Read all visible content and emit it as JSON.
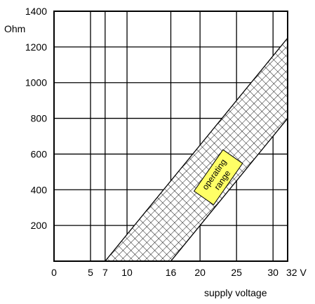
{
  "chart_data": {
    "type": "area",
    "title": "",
    "xlabel": "supply voltage",
    "ylabel": "Ohm",
    "x_unit": "V",
    "xlim": [
      0,
      32
    ],
    "ylim": [
      0,
      1400
    ],
    "x_ticks": [
      0,
      5,
      7,
      10,
      16,
      20,
      25,
      30,
      32
    ],
    "x_tick_labels": [
      "0",
      "5",
      "7",
      "10",
      "16",
      "20",
      "25",
      "30",
      "32 V"
    ],
    "y_ticks": [
      200,
      400,
      600,
      800,
      1000,
      1200,
      1400
    ],
    "y_tick_labels": [
      "200",
      "400",
      "600",
      "800",
      "1000",
      "1200",
      "1400"
    ],
    "grid": true,
    "series": [
      {
        "name": "operating range",
        "fill_pattern": "crosshatch",
        "upper_bound": [
          [
            7,
            0
          ],
          [
            32,
            1250
          ]
        ],
        "lower_bound": [
          [
            16,
            0
          ],
          [
            32,
            800
          ]
        ]
      }
    ],
    "annotations": [
      {
        "text_lines": [
          "operating",
          "range"
        ],
        "x": 22.5,
        "y": 470,
        "rotation": -55,
        "fill": "#ffff66"
      }
    ]
  }
}
